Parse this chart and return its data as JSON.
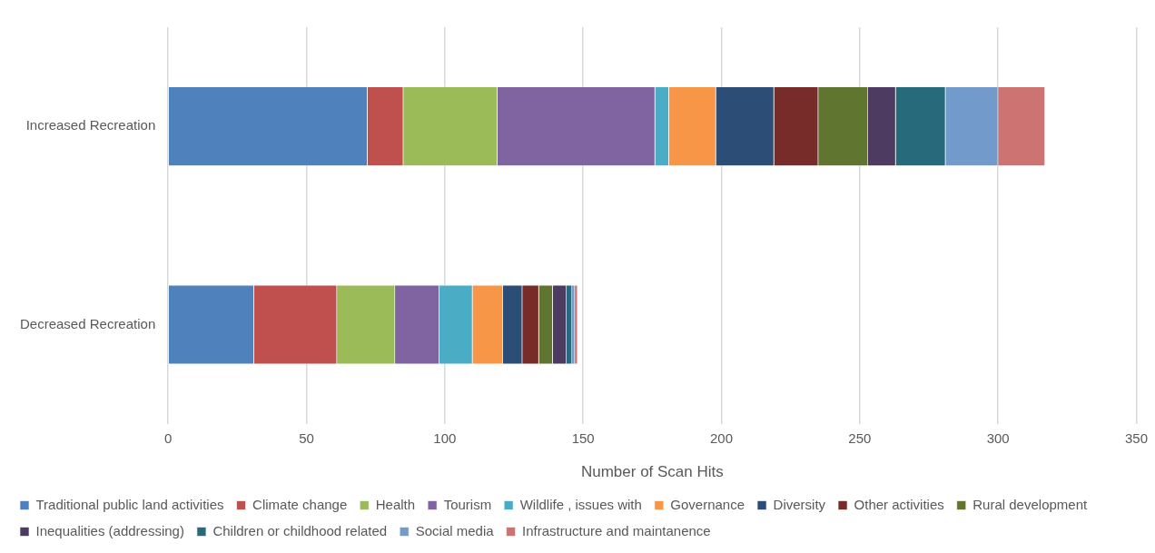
{
  "chart_data": {
    "type": "bar",
    "orientation": "horizontal",
    "stacked": true,
    "xlabel": "Number of Scan Hits",
    "categories": [
      "Increased Recreation",
      "Decreased Recreation"
    ],
    "xlim": [
      0,
      350
    ],
    "xticks": [
      0,
      50,
      100,
      150,
      200,
      250,
      300,
      350
    ],
    "grid": "x",
    "legend": "bottom",
    "series": [
      {
        "name": "Traditional public land activities",
        "color": "#4f81bd",
        "values": [
          72,
          31
        ]
      },
      {
        "name": "Climate change",
        "color": "#c0504d",
        "values": [
          13,
          30
        ]
      },
      {
        "name": "Health",
        "color": "#9bbb59",
        "values": [
          34,
          21
        ]
      },
      {
        "name": "Tourism",
        "color": "#8064a2",
        "values": [
          57,
          16
        ]
      },
      {
        "name": "Wildlife , issues with",
        "color": "#4bacc6",
        "values": [
          5,
          12
        ]
      },
      {
        "name": "Governance",
        "color": "#f79646",
        "values": [
          17,
          11
        ]
      },
      {
        "name": "Diversity",
        "color": "#2c4d75",
        "values": [
          21,
          7
        ]
      },
      {
        "name": "Other activities",
        "color": "#772c2a",
        "values": [
          16,
          6
        ]
      },
      {
        "name": "Rural development",
        "color": "#5f7530",
        "values": [
          18,
          5
        ]
      },
      {
        "name": "Inequalities (addressing)",
        "color": "#4d3b62",
        "values": [
          10,
          5
        ]
      },
      {
        "name": "Children or childhood related",
        "color": "#276a7c",
        "values": [
          18,
          2
        ]
      },
      {
        "name": "Social media",
        "color": "#729aca",
        "values": [
          19,
          1
        ]
      },
      {
        "name": "Infrastructure and maintanence",
        "color": "#cd7371",
        "values": [
          17,
          1
        ]
      }
    ]
  }
}
